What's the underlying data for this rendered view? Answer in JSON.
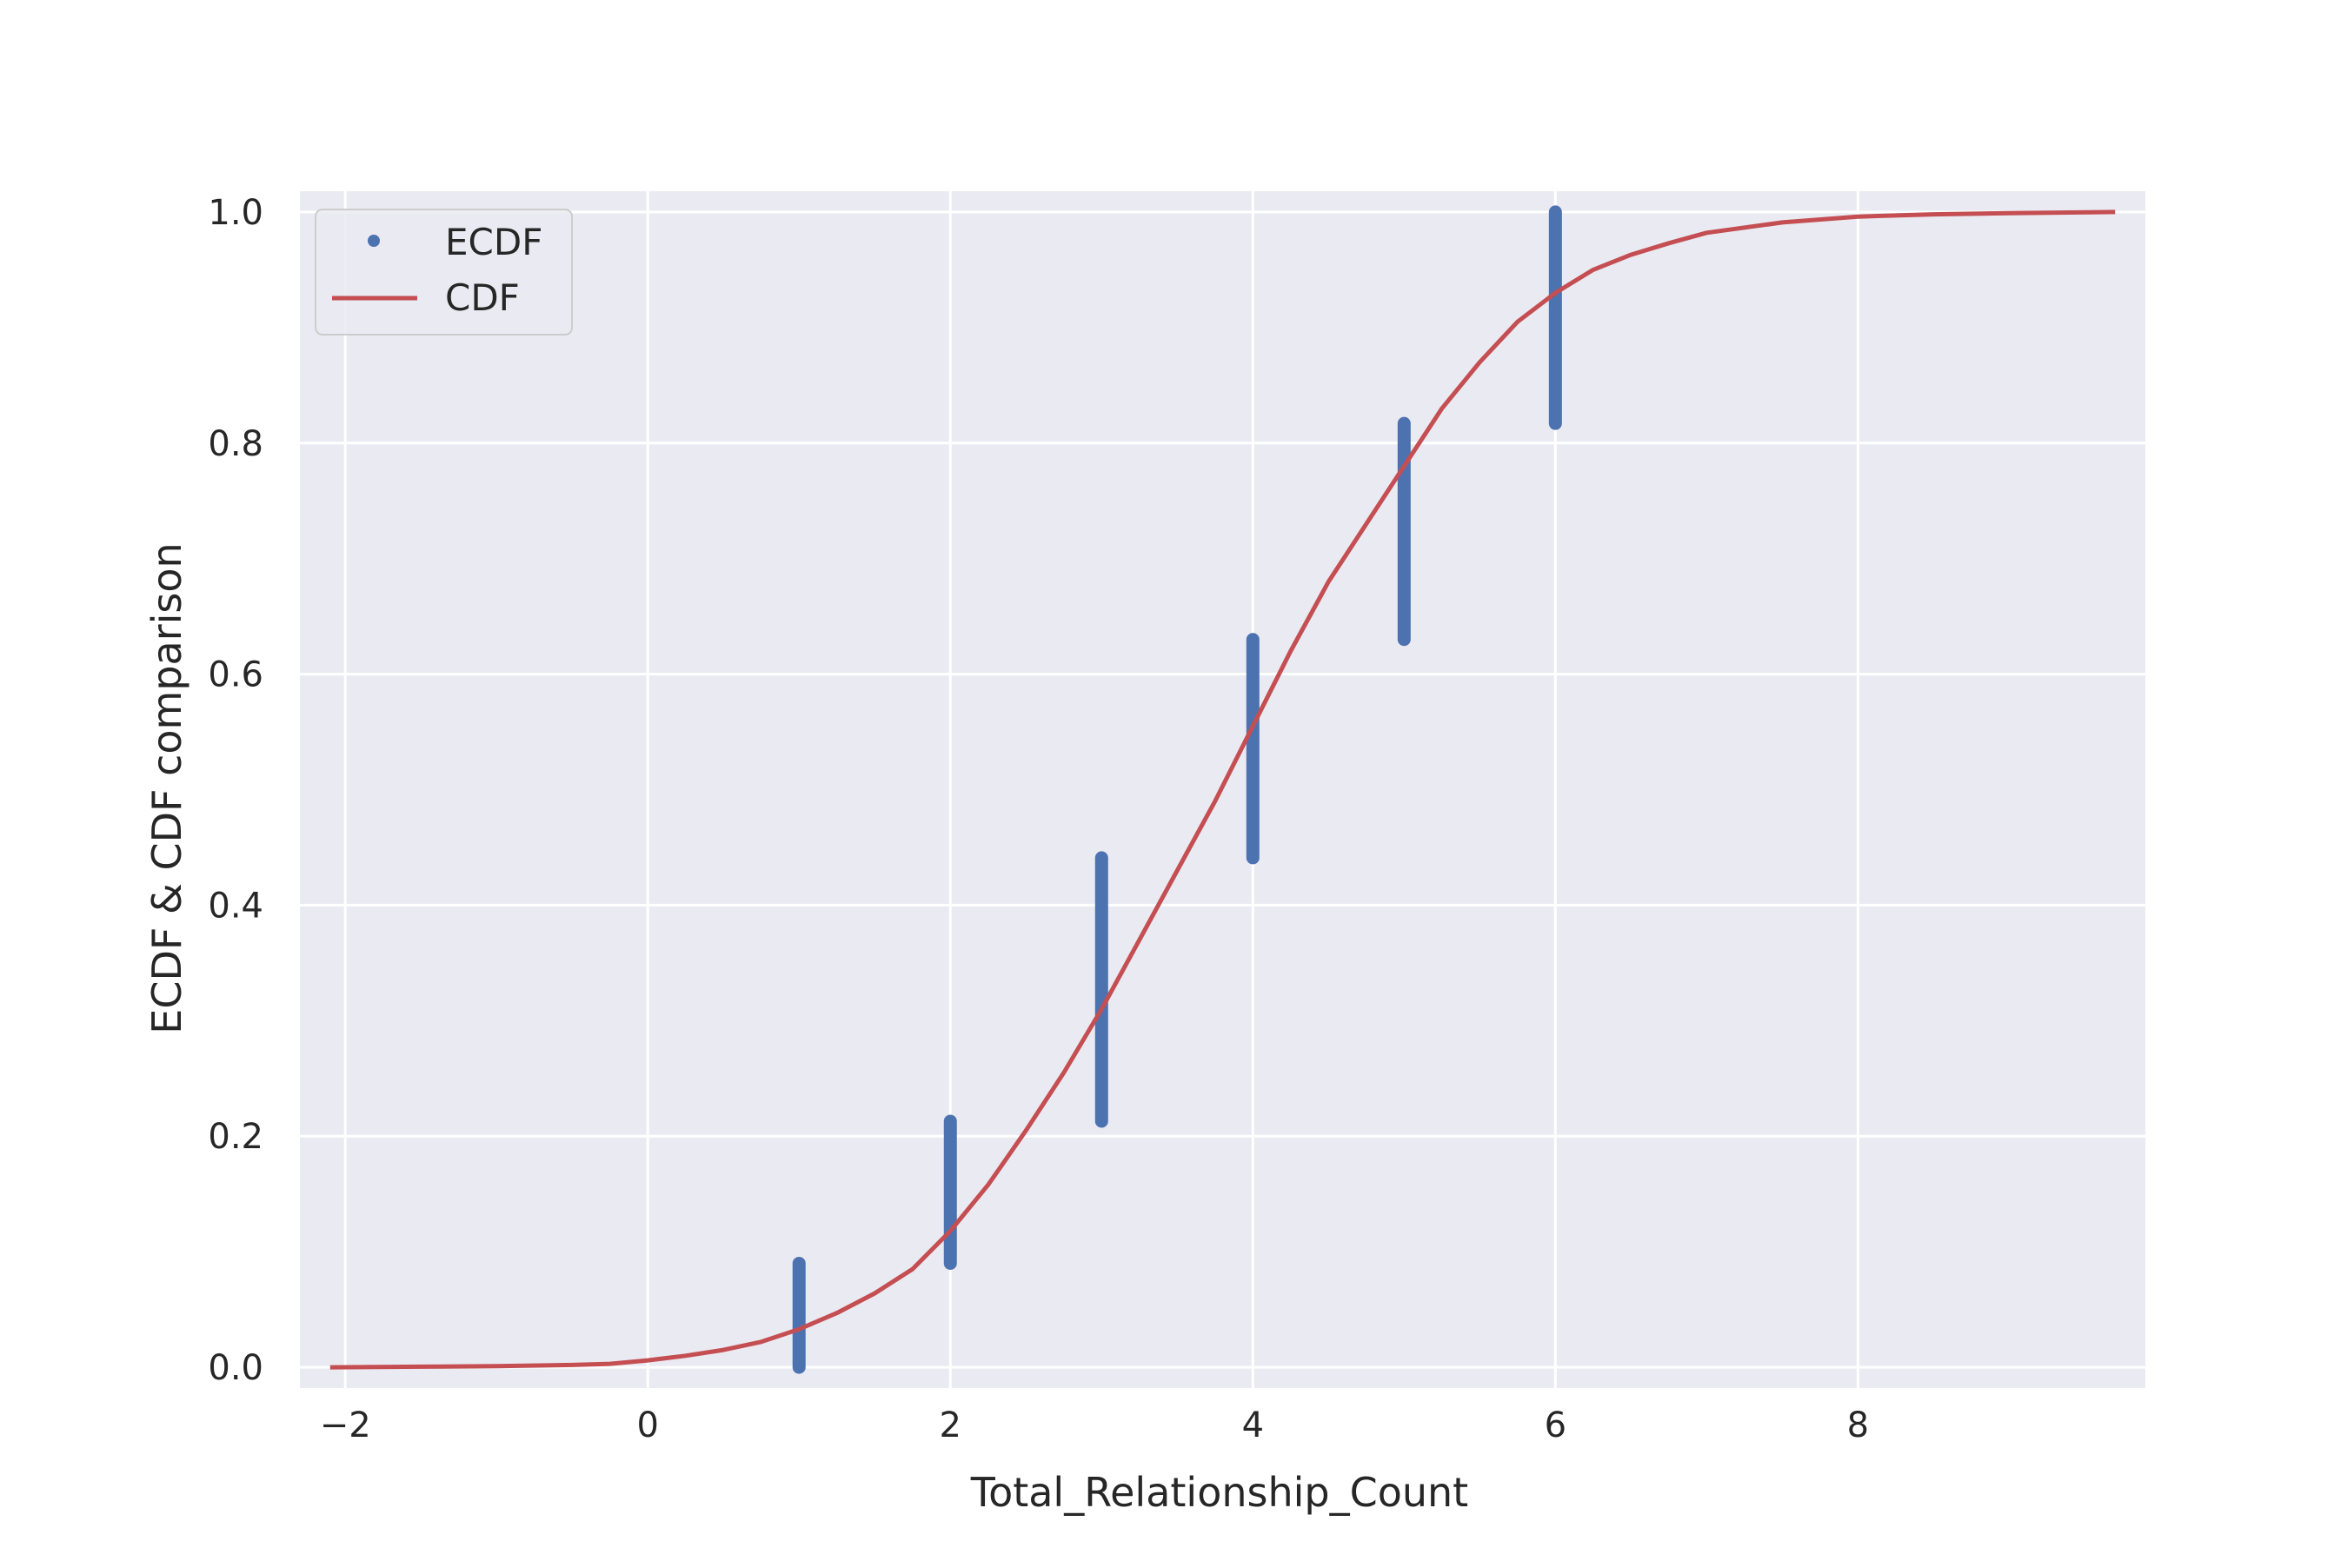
{
  "chart_data": {
    "type": "line",
    "xlabel": "Total_Relationship_Count",
    "ylabel": "ECDF & CDF comparison",
    "xlim": [
      -2.3,
      9.9
    ],
    "ylim": [
      -0.018,
      1.018
    ],
    "x_ticks": [
      -2,
      0,
      2,
      4,
      6,
      8
    ],
    "x_tick_labels": [
      "−2",
      "0",
      "2",
      "4",
      "6",
      "8"
    ],
    "y_ticks": [
      0.0,
      0.2,
      0.4,
      0.6,
      0.8,
      1.0
    ],
    "y_tick_labels": [
      "0.0",
      "0.2",
      "0.4",
      "0.6",
      "0.8",
      "1.0"
    ],
    "grid": true,
    "legend_position": "upper-left",
    "background_color": "#eaeaf2",
    "series": [
      {
        "name": "ECDF",
        "kind": "points",
        "color": "#4c72b0",
        "segments": [
          {
            "x": 1,
            "y_from": 0.0,
            "y_to": 0.09
          },
          {
            "x": 2,
            "y_from": 0.09,
            "y_to": 0.213
          },
          {
            "x": 3,
            "y_from": 0.213,
            "y_to": 0.441
          },
          {
            "x": 4,
            "y_from": 0.441,
            "y_to": 0.63
          },
          {
            "x": 5,
            "y_from": 0.63,
            "y_to": 0.817
          },
          {
            "x": 6,
            "y_from": 0.817,
            "y_to": 1.0
          }
        ]
      },
      {
        "name": "CDF",
        "kind": "line",
        "color": "#c44e52",
        "x": [
          -2.1,
          -1.5,
          -1.0,
          -0.5,
          -0.25,
          0.0,
          0.25,
          0.5,
          0.75,
          1.0,
          1.25,
          1.5,
          1.75,
          2.0,
          2.25,
          2.5,
          2.75,
          3.0,
          3.25,
          3.5,
          3.75,
          4.0,
          4.25,
          4.5,
          4.75,
          5.0,
          5.25,
          5.5,
          5.75,
          6.0,
          6.25,
          6.5,
          6.75,
          7.0,
          7.5,
          8.0,
          8.5,
          9.0,
          9.7
        ],
        "y": [
          0.0,
          0.0005,
          0.001,
          0.002,
          0.003,
          0.006,
          0.01,
          0.015,
          0.022,
          0.033,
          0.047,
          0.064,
          0.085,
          0.118,
          0.158,
          0.205,
          0.255,
          0.31,
          0.37,
          0.43,
          0.49,
          0.555,
          0.62,
          0.68,
          0.73,
          0.78,
          0.83,
          0.87,
          0.905,
          0.93,
          0.95,
          0.963,
          0.973,
          0.982,
          0.991,
          0.996,
          0.998,
          0.999,
          1.0
        ]
      }
    ]
  }
}
